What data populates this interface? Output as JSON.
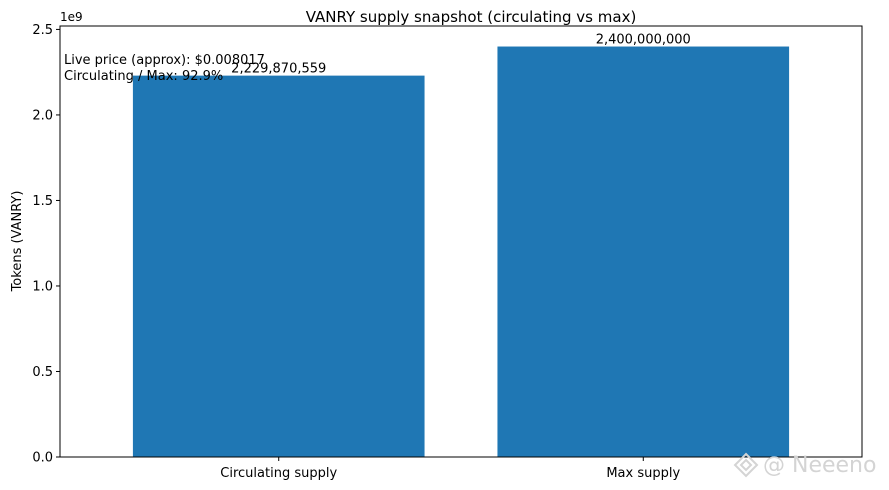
{
  "chart_data": {
    "type": "bar",
    "title": "VANRY supply snapshot (circulating vs max)",
    "xlabel": "",
    "ylabel": "Tokens (VANRY)",
    "y_multiplier_label": "1e9",
    "categories": [
      "Circulating supply",
      "Max supply"
    ],
    "values": [
      2229870559,
      2400000000
    ],
    "data_labels": [
      "2,229,870,559",
      "2,400,000,000"
    ],
    "ylim": [
      0,
      2520000000
    ],
    "yticks": [
      0,
      0.5,
      1.0,
      1.5,
      2.0,
      2.5
    ],
    "ytick_labels": [
      "0.0",
      "0.5",
      "1.0",
      "1.5",
      "2.0",
      "2.5"
    ],
    "y_scale": 1000000000,
    "grid": false,
    "bar_color": "#1f77b4",
    "annotations": [
      "Live price (approx): $0.008017",
      "Circulating / Max: 92.9%"
    ]
  },
  "watermark": {
    "text": "@ Neeeno",
    "icon": "diamond-logo-icon"
  }
}
